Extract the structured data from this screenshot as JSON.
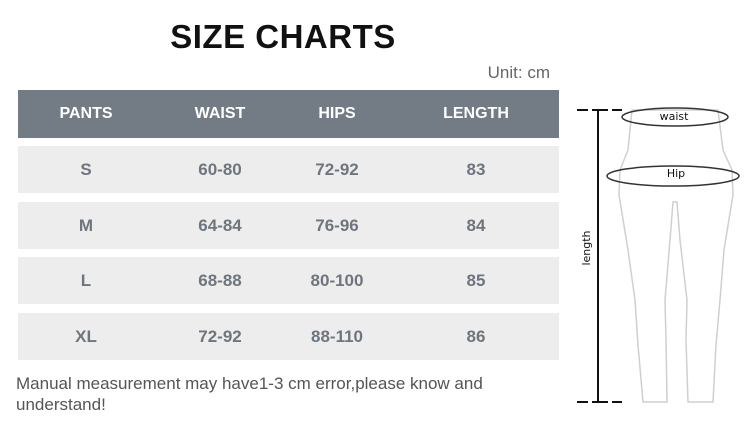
{
  "title": "SIZE CHARTS",
  "unit": "Unit: cm",
  "table": {
    "headers": [
      "PANTS",
      "WAIST",
      "HIPS",
      "LENGTH"
    ],
    "rows": [
      [
        "S",
        "60-80",
        "72-92",
        "83"
      ],
      [
        "M",
        "64-84",
        "76-96",
        "84"
      ],
      [
        "L",
        "68-88",
        "80-100",
        "85"
      ],
      [
        "XL",
        "72-92",
        "88-110",
        "86"
      ]
    ]
  },
  "note": "Manual measurement may have1-3 cm error,please know and understand!",
  "diagram": {
    "waist": "waist",
    "hip": "Hip",
    "length": "length"
  },
  "colors": {
    "header_bg": "#737b84",
    "row_bg": "#ededee",
    "cell_text": "#6e757d"
  }
}
